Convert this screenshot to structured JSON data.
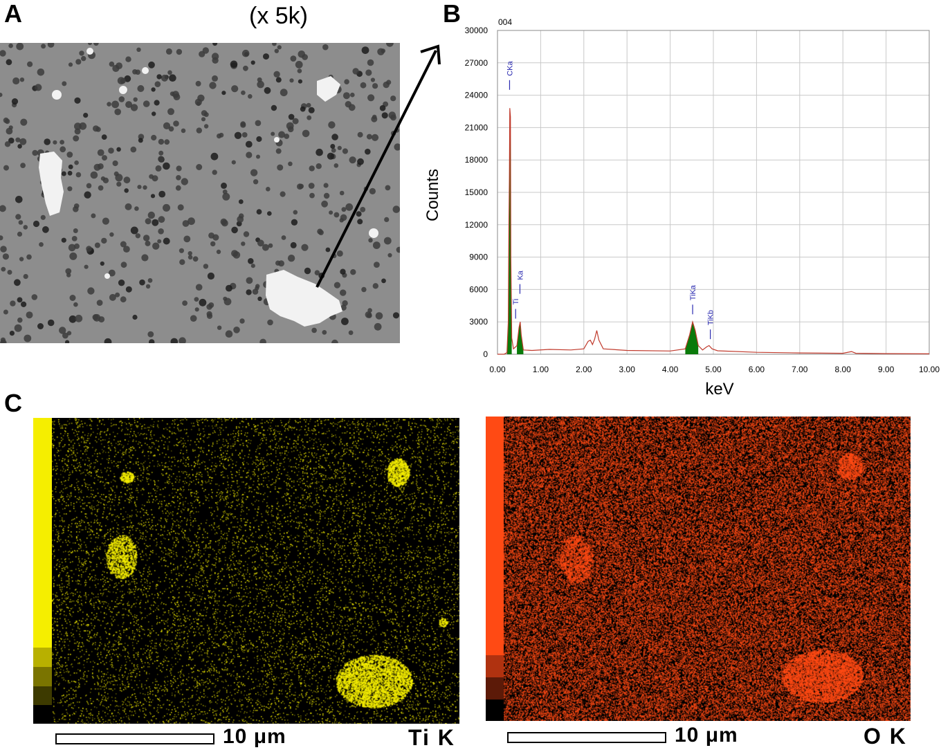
{
  "panels": {
    "a": {
      "letter": "A",
      "magnification": "(x 5k)"
    },
    "b": {
      "letter": "B",
      "spectrum_id": "004"
    },
    "c": {
      "letter": "C",
      "maps": [
        {
          "element_label": "Ti K",
          "scale_label": "10 μm",
          "color": "#f5ee00"
        },
        {
          "element_label": "O K",
          "scale_label": "10 μm",
          "color": "#ff4a14"
        }
      ]
    }
  },
  "colors": {
    "sem_background": "#8d8d8d",
    "sem_pore": "#3c3c3c",
    "sem_particle": "#f2f2f2",
    "spectrum_line": "#c0392b",
    "spectrum_fill": "#0a7a0a",
    "peak_label": "#2a2ab0",
    "grid": "#c8c8c8"
  },
  "chart_data": {
    "type": "line",
    "title": "",
    "xlabel": "keV",
    "ylabel": "Counts",
    "xlim": [
      0.0,
      10.0
    ],
    "ylim": [
      0,
      30000
    ],
    "x_ticks": [
      "0.00",
      "1.00",
      "2.00",
      "3.00",
      "4.00",
      "5.00",
      "6.00",
      "7.00",
      "8.00",
      "9.00",
      "10.00"
    ],
    "y_ticks": [
      "0",
      "3000",
      "6000",
      "9000",
      "12000",
      "15000",
      "18000",
      "21000",
      "24000",
      "27000",
      "30000"
    ],
    "grid": true,
    "series": [
      {
        "values": [
          [
            0.0,
            0
          ],
          [
            0.15,
            0
          ],
          [
            0.22,
            150
          ],
          [
            0.25,
            3000
          ],
          [
            0.265,
            12000
          ],
          [
            0.275,
            16300
          ],
          [
            0.285,
            22800
          ],
          [
            0.3,
            22000
          ],
          [
            0.31,
            9000
          ],
          [
            0.33,
            1500
          ],
          [
            0.37,
            500
          ],
          [
            0.45,
            800
          ],
          [
            0.5,
            2500
          ],
          [
            0.525,
            3000
          ],
          [
            0.55,
            1800
          ],
          [
            0.6,
            400
          ],
          [
            0.8,
            350
          ],
          [
            1.2,
            450
          ],
          [
            1.7,
            400
          ],
          [
            2.0,
            500
          ],
          [
            2.1,
            1200
          ],
          [
            2.15,
            1300
          ],
          [
            2.2,
            900
          ],
          [
            2.25,
            1400
          ],
          [
            2.3,
            2200
          ],
          [
            2.35,
            1300
          ],
          [
            2.45,
            500
          ],
          [
            3.0,
            350
          ],
          [
            4.0,
            300
          ],
          [
            4.35,
            500
          ],
          [
            4.45,
            1800
          ],
          [
            4.52,
            3000
          ],
          [
            4.58,
            2200
          ],
          [
            4.65,
            800
          ],
          [
            4.75,
            400
          ],
          [
            4.85,
            700
          ],
          [
            4.9,
            800
          ],
          [
            4.97,
            500
          ],
          [
            5.1,
            320
          ],
          [
            6.0,
            180
          ],
          [
            7.0,
            120
          ],
          [
            8.0,
            90
          ],
          [
            8.2,
            250
          ],
          [
            8.3,
            90
          ],
          [
            9.0,
            60
          ],
          [
            10.0,
            40
          ]
        ]
      }
    ],
    "peak_labels": [
      {
        "label": "CKa",
        "x": 0.28,
        "y": 24500
      },
      {
        "label": "Ti",
        "x": 0.42,
        "y": 3300
      },
      {
        "label": "Ka",
        "x": 0.52,
        "y": 5600
      },
      {
        "label": "TiKa",
        "x": 4.52,
        "y": 3700
      },
      {
        "label": "TiKb",
        "x": 4.93,
        "y": 1400
      }
    ]
  }
}
